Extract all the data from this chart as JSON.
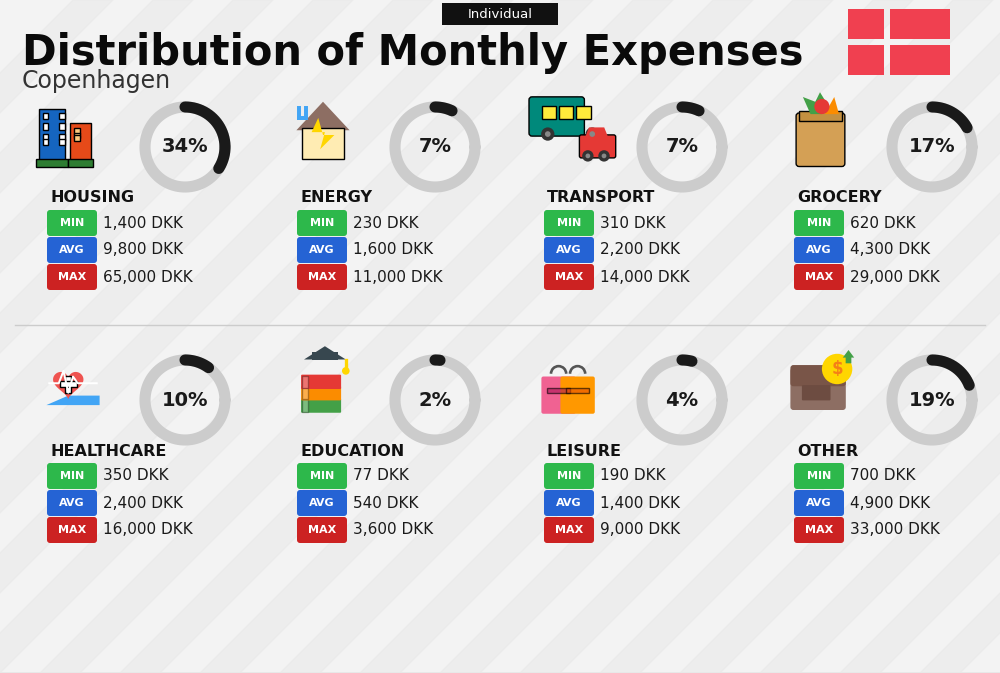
{
  "title": "Distribution of Monthly Expenses",
  "subtitle": "Copenhagen",
  "tag": "Individual",
  "bg_color": "#f3f3f3",
  "categories": [
    {
      "name": "HOUSING",
      "pct": 34,
      "min": "1,400 DKK",
      "avg": "9,800 DKK",
      "max": "65,000 DKK",
      "row": 0,
      "col": 0
    },
    {
      "name": "ENERGY",
      "pct": 7,
      "min": "230 DKK",
      "avg": "1,600 DKK",
      "max": "11,000 DKK",
      "row": 0,
      "col": 1
    },
    {
      "name": "TRANSPORT",
      "pct": 7,
      "min": "310 DKK",
      "avg": "2,200 DKK",
      "max": "14,000 DKK",
      "row": 0,
      "col": 2
    },
    {
      "name": "GROCERY",
      "pct": 17,
      "min": "620 DKK",
      "avg": "4,300 DKK",
      "max": "29,000 DKK",
      "row": 0,
      "col": 3
    },
    {
      "name": "HEALTHCARE",
      "pct": 10,
      "min": "350 DKK",
      "avg": "2,400 DKK",
      "max": "16,000 DKK",
      "row": 1,
      "col": 0
    },
    {
      "name": "EDUCATION",
      "pct": 2,
      "min": "77 DKK",
      "avg": "540 DKK",
      "max": "3,600 DKK",
      "row": 1,
      "col": 1
    },
    {
      "name": "LEISURE",
      "pct": 4,
      "min": "190 DKK",
      "avg": "1,400 DKK",
      "max": "9,000 DKK",
      "row": 1,
      "col": 2
    },
    {
      "name": "OTHER",
      "pct": 19,
      "min": "700 DKK",
      "avg": "4,900 DKK",
      "max": "33,000 DKK",
      "row": 1,
      "col": 3
    }
  ],
  "color_min": "#2db84b",
  "color_avg": "#2563d4",
  "color_max": "#cc2222",
  "color_arc_fill": "#1a1a1a",
  "color_arc_bg": "#cccccc",
  "flag_color": "#f04050",
  "divider_color": "#cccccc",
  "stripe_color": "#e8e8e8"
}
